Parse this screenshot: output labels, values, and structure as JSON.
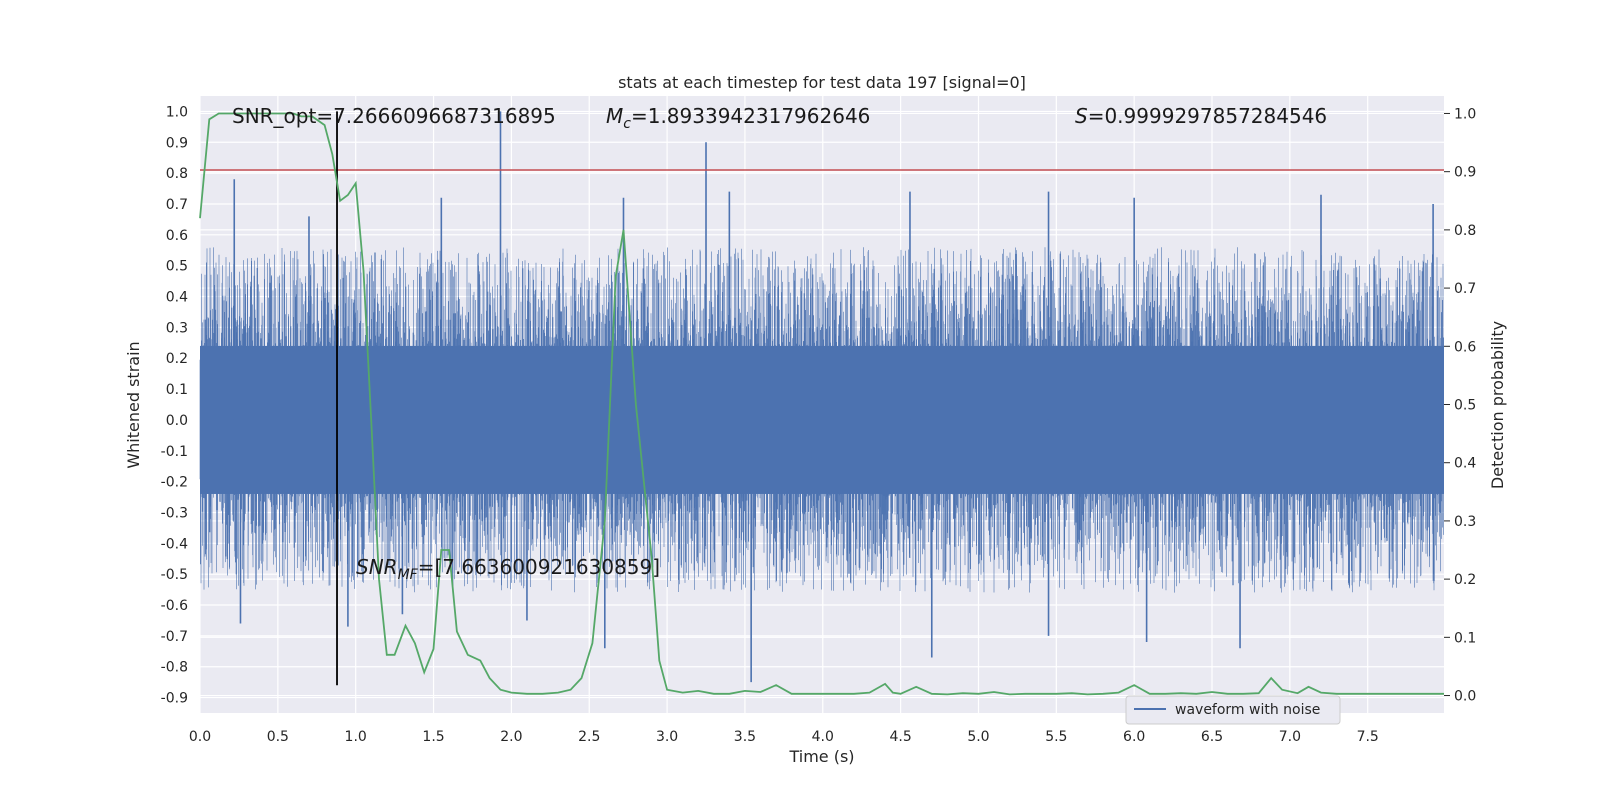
{
  "chart_data": {
    "type": "line",
    "title": "stats at each timestep for test data 197 [signal=0]",
    "xlabel": "Time (s)",
    "ylabel_left": "Whitened strain",
    "ylabel_right": "Detection probability",
    "xlim": [
      0.0,
      7.99
    ],
    "ylim_left": [
      -0.95,
      1.05
    ],
    "ylim_right": [
      -0.03,
      1.03
    ],
    "x_ticks": [
      "0.0",
      "0.5",
      "1.0",
      "1.5",
      "2.0",
      "2.5",
      "3.0",
      "3.5",
      "4.0",
      "4.5",
      "5.0",
      "5.5",
      "6.0",
      "6.5",
      "7.0",
      "7.5"
    ],
    "x_tick_values": [
      0.0,
      0.5,
      1.0,
      1.5,
      2.0,
      2.5,
      3.0,
      3.5,
      4.0,
      4.5,
      5.0,
      5.5,
      6.0,
      6.5,
      7.0,
      7.5
    ],
    "y_left_ticks": [
      "1.0",
      "0.9",
      "0.8",
      "0.7",
      "0.6",
      "0.5",
      "0.4",
      "0.3",
      "0.2",
      "0.1",
      "0.0",
      "-0.1",
      "-0.2",
      "-0.3",
      "-0.4",
      "-0.5",
      "-0.6",
      "-0.7",
      "-0.8",
      "-0.9"
    ],
    "y_left_tick_values": [
      1.0,
      0.9,
      0.8,
      0.7,
      0.6,
      0.5,
      0.4,
      0.3,
      0.2,
      0.1,
      0.0,
      -0.1,
      -0.2,
      -0.3,
      -0.4,
      -0.5,
      -0.6,
      -0.7,
      -0.8,
      -0.9
    ],
    "y_right_ticks": [
      "1.0",
      "0.9",
      "0.8",
      "0.7",
      "0.6",
      "0.5",
      "0.4",
      "0.3",
      "0.2",
      "0.1",
      "0.0"
    ],
    "y_right_tick_values": [
      1.0,
      0.9,
      0.8,
      0.7,
      0.6,
      0.5,
      0.4,
      0.3,
      0.2,
      0.1,
      0.0
    ],
    "grid": true,
    "background": "#eaeaf2",
    "series": [
      {
        "name": "waveform with noise",
        "color": "#4c72b0",
        "axis": "left",
        "style": "noise",
        "spikes": [
          {
            "x": 0.22,
            "y": 0.78
          },
          {
            "x": 0.7,
            "y": 0.66
          },
          {
            "x": 1.55,
            "y": 0.72
          },
          {
            "x": 1.93,
            "y": 1.0
          },
          {
            "x": 2.72,
            "y": 0.72
          },
          {
            "x": 3.25,
            "y": 0.9
          },
          {
            "x": 3.4,
            "y": 0.74
          },
          {
            "x": 4.56,
            "y": 0.74
          },
          {
            "x": 5.45,
            "y": 0.74
          },
          {
            "x": 6.0,
            "y": 0.72
          },
          {
            "x": 7.2,
            "y": 0.73
          },
          {
            "x": 7.92,
            "y": 0.7
          },
          {
            "x": 0.26,
            "y": -0.66
          },
          {
            "x": 0.95,
            "y": -0.67
          },
          {
            "x": 1.3,
            "y": -0.63
          },
          {
            "x": 2.1,
            "y": -0.65
          },
          {
            "x": 2.6,
            "y": -0.74
          },
          {
            "x": 3.54,
            "y": -0.85
          },
          {
            "x": 4.7,
            "y": -0.77
          },
          {
            "x": 5.45,
            "y": -0.7
          },
          {
            "x": 6.08,
            "y": -0.72
          },
          {
            "x": 6.68,
            "y": -0.74
          }
        ]
      },
      {
        "name": "",
        "color": "#55a868",
        "axis": "right",
        "x": [
          0.0,
          0.06,
          0.12,
          0.2,
          0.3,
          0.4,
          0.5,
          0.6,
          0.65,
          0.72,
          0.8,
          0.85,
          0.9,
          0.95,
          1.0,
          1.05,
          1.1,
          1.15,
          1.2,
          1.25,
          1.32,
          1.38,
          1.44,
          1.5,
          1.55,
          1.6,
          1.65,
          1.72,
          1.8,
          1.86,
          1.93,
          2.0,
          2.1,
          2.2,
          2.3,
          2.38,
          2.45,
          2.52,
          2.6,
          2.67,
          2.72,
          2.8,
          2.9,
          2.95,
          3.0,
          3.1,
          3.2,
          3.3,
          3.4,
          3.5,
          3.6,
          3.7,
          3.8,
          3.9,
          4.0,
          4.2,
          4.3,
          4.4,
          4.45,
          4.5,
          4.6,
          4.7,
          4.8,
          4.9,
          5.0,
          5.1,
          5.2,
          5.3,
          5.4,
          5.5,
          5.6,
          5.7,
          5.8,
          5.9,
          6.0,
          6.1,
          6.2,
          6.3,
          6.4,
          6.5,
          6.6,
          6.7,
          6.8,
          6.88,
          6.95,
          7.05,
          7.12,
          7.2,
          7.3,
          7.5,
          7.7,
          7.99
        ],
        "y": [
          0.82,
          0.99,
          1.0,
          1.0,
          1.0,
          1.0,
          1.0,
          1.0,
          0.995,
          0.995,
          0.98,
          0.93,
          0.85,
          0.86,
          0.88,
          0.73,
          0.47,
          0.2,
          0.07,
          0.07,
          0.12,
          0.09,
          0.04,
          0.08,
          0.25,
          0.25,
          0.11,
          0.07,
          0.06,
          0.03,
          0.01,
          0.005,
          0.003,
          0.003,
          0.005,
          0.01,
          0.03,
          0.09,
          0.3,
          0.72,
          0.8,
          0.5,
          0.24,
          0.06,
          0.01,
          0.005,
          0.008,
          0.003,
          0.003,
          0.008,
          0.006,
          0.018,
          0.003,
          0.003,
          0.003,
          0.003,
          0.005,
          0.02,
          0.005,
          0.003,
          0.015,
          0.003,
          0.002,
          0.004,
          0.003,
          0.006,
          0.002,
          0.003,
          0.003,
          0.003,
          0.004,
          0.002,
          0.003,
          0.005,
          0.018,
          0.003,
          0.003,
          0.004,
          0.003,
          0.006,
          0.003,
          0.003,
          0.004,
          0.03,
          0.01,
          0.004,
          0.015,
          0.005,
          0.003,
          0.003,
          0.003,
          0.003
        ]
      }
    ],
    "threshold_line": {
      "axis": "left",
      "y": 0.81,
      "color": "#c44e52"
    },
    "marker_line": {
      "x": 0.88,
      "y_from": -0.86,
      "y_to": 1.0,
      "color": "#000000"
    },
    "annotations": {
      "snr_opt": "SNR_opt=7.2666096687316895",
      "mc": "=1.8933942317962646",
      "s": "=0.9999297857284546",
      "snr_mf": "=[7.663600921630859]"
    },
    "legend": {
      "position": "lower right",
      "label": "waveform with noise"
    }
  }
}
